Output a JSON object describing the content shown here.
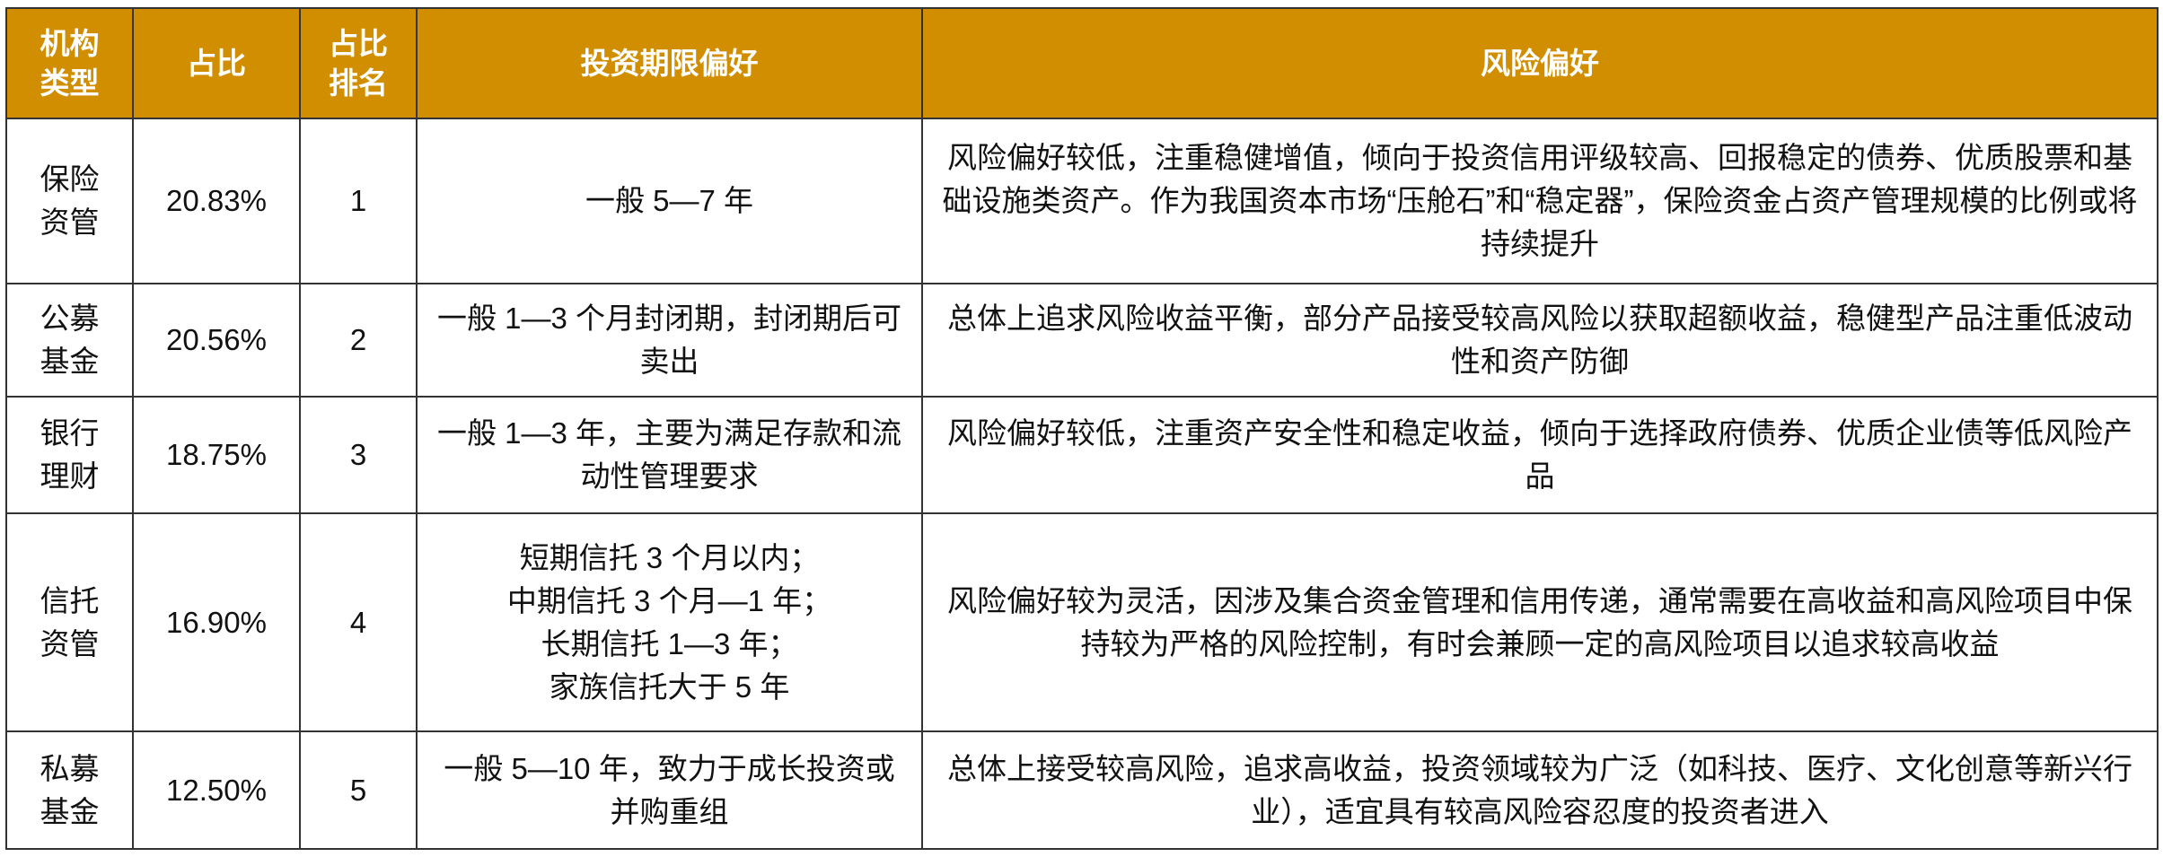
{
  "colors": {
    "header_bg": "#D08E00",
    "header_text": "#FFFFFF"
  },
  "headers": [
    "机构\n类型",
    "占比",
    "占比\n排名",
    "投资期限偏好",
    "风险偏好"
  ],
  "rows": [
    {
      "type": "保险\n资管",
      "share": "20.83%",
      "rank": "1",
      "term": "一般 5—7 年",
      "risk": "风险偏好较低，注重稳健增值，倾向于投资信用评级较高、回报稳定的债券、优质股票和基础设施类资产。作为我国资本市场“压舱石”和“稳定器”，保险资金占资产管理规模的比例或将持续提升"
    },
    {
      "type": "公募\n基金",
      "share": "20.56%",
      "rank": "2",
      "term": "一般 1—3 个月封闭期，封闭期后可卖出",
      "risk": "总体上追求风险收益平衡，部分产品接受较高风险以获取超额收益，稳健型产品注重低波动性和资产防御"
    },
    {
      "type": "银行\n理财",
      "share": "18.75%",
      "rank": "3",
      "term": "一般 1—3 年，主要为满足存款和流动性管理要求",
      "risk": "风险偏好较低，注重资产安全性和稳定收益，倾向于选择政府债券、优质企业债等低风险产品"
    },
    {
      "type": "信托\n资管",
      "share": "16.90%",
      "rank": "4",
      "term": "短期信托 3 个月以内；\n中期信托 3 个月—1 年；\n长期信托 1—3 年；\n家族信托大于 5 年",
      "risk": "风险偏好较为灵活，因涉及集合资金管理和信用传递，通常需要在高收益和高风险项目中保持较为严格的风险控制，有时会兼顾一定的高风险项目以追求较高收益"
    },
    {
      "type": "私募\n基金",
      "share": "12.50%",
      "rank": "5",
      "term": "一般 5—10 年，致力于成长投资或并购重组",
      "risk": "总体上接受较高风险，追求高收益，投资领域较为广泛（如科技、医疗、文化创意等新兴行业），适宜具有较高风险容忍度的投资者进入"
    }
  ]
}
